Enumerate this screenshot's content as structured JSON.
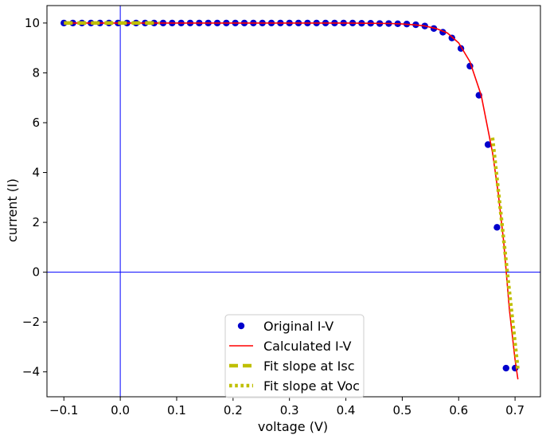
{
  "chart_data": {
    "type": "line",
    "xlabel": "voltage (V)",
    "ylabel": "current (I)",
    "xlim": [
      -0.13,
      0.745
    ],
    "ylim": [
      -5.0,
      10.7
    ],
    "xticks": [
      -0.1,
      0.0,
      0.1,
      0.2,
      0.3,
      0.4,
      0.5,
      0.6,
      0.7
    ],
    "xtick_labels": [
      "−0.1",
      "0.0",
      "0.1",
      "0.2",
      "0.3",
      "0.4",
      "0.5",
      "0.6",
      "0.7"
    ],
    "yticks": [
      -4,
      -2,
      0,
      2,
      4,
      6,
      8,
      10
    ],
    "ytick_labels": [
      "−4",
      "−2",
      "0",
      "2",
      "4",
      "6",
      "8",
      "10"
    ],
    "grid": false,
    "reference_lines": {
      "x": 0,
      "y": 0,
      "color": "#0000ff"
    },
    "legend_position": "lower-center",
    "series": [
      {
        "name": "Original I-V",
        "kind": "scatter",
        "color": "#0000cc",
        "x": [
          -0.1,
          -0.084,
          -0.068,
          -0.052,
          -0.036,
          -0.02,
          -0.004,
          0.012,
          0.028,
          0.044,
          0.06,
          0.076,
          0.092,
          0.108,
          0.124,
          0.14,
          0.156,
          0.172,
          0.188,
          0.204,
          0.22,
          0.236,
          0.252,
          0.268,
          0.284,
          0.3,
          0.316,
          0.332,
          0.348,
          0.364,
          0.38,
          0.396,
          0.412,
          0.428,
          0.444,
          0.46,
          0.476,
          0.492,
          0.508,
          0.524,
          0.54,
          0.556,
          0.572,
          0.588,
          0.604,
          0.62,
          0.636,
          0.652,
          0.668,
          0.684,
          0.7
        ],
        "y": [
          10,
          10,
          10,
          10,
          10,
          10,
          10,
          10,
          10,
          10,
          10,
          10,
          10,
          10,
          10,
          10,
          10,
          10,
          10,
          10,
          10,
          10,
          10,
          10,
          10,
          10,
          10,
          10,
          10,
          10,
          10,
          10,
          10,
          9.99,
          9.99,
          9.98,
          9.98,
          9.97,
          9.96,
          9.93,
          9.88,
          9.78,
          9.63,
          9.4,
          8.98,
          8.27,
          7.1,
          5.12,
          1.8,
          -3.85,
          -3.85
        ]
      },
      {
        "name": "Calculated I-V",
        "kind": "line",
        "color": "#ff0000",
        "x": [
          -0.1,
          0.0,
          0.1,
          0.2,
          0.3,
          0.4,
          0.44,
          0.48,
          0.5,
          0.52,
          0.54,
          0.56,
          0.58,
          0.6,
          0.62,
          0.64,
          0.66,
          0.67,
          0.68,
          0.69,
          0.7,
          0.705
        ],
        "y": [
          10,
          10,
          10,
          10,
          10,
          10,
          9.99,
          9.98,
          9.96,
          9.93,
          9.88,
          9.78,
          9.6,
          9.2,
          8.45,
          7.1,
          4.8,
          3.2,
          1.2,
          -1.5,
          -3.5,
          -4.3
        ]
      },
      {
        "name": "Fit slope at Isc",
        "kind": "dashed",
        "color": "#bfbf00",
        "x": [
          -0.1,
          0.07
        ],
        "y": [
          10,
          10
        ]
      },
      {
        "name": "Fit slope at Voc",
        "kind": "dotted",
        "color": "#bfbf00",
        "x": [
          0.66,
          0.705
        ],
        "y": [
          5.4,
          -3.9
        ]
      }
    ]
  }
}
